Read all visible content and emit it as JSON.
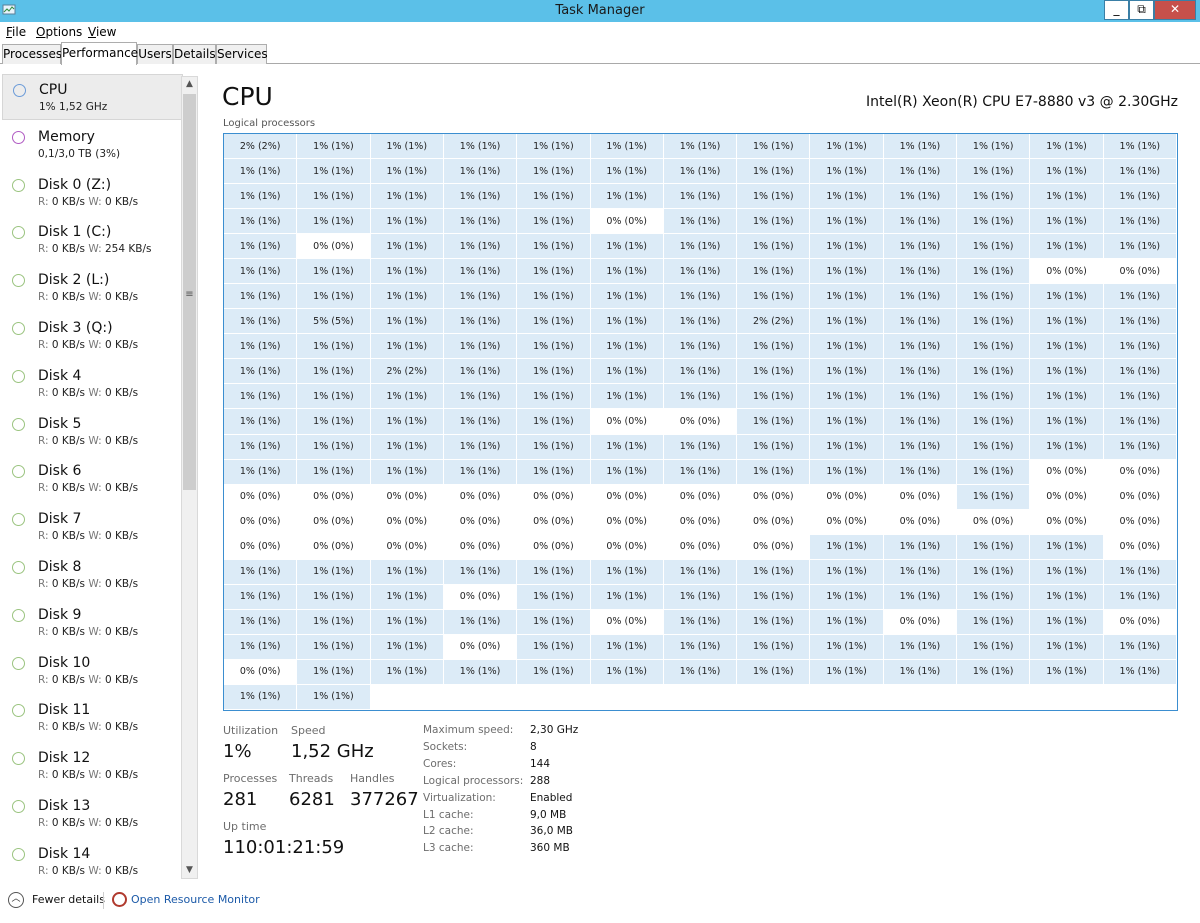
{
  "window": {
    "title": "Task Manager",
    "close_glyph": "✕",
    "max_glyph": "⧉",
    "min_glyph": "_"
  },
  "menu": {
    "file_ul": "F",
    "file_rest": "ile",
    "options_ul": "O",
    "options_rest": "ptions",
    "view_ul": "V",
    "view_rest": "iew"
  },
  "tabs": [
    "Processes",
    "Performance",
    "Users",
    "Details",
    "Services"
  ],
  "sidebar": {
    "items": [
      {
        "name": "CPU",
        "sub": "1% 1,52 GHz",
        "color": "#6b9bd8"
      },
      {
        "name": "Memory",
        "sub": "0,1/3,0 TB (3%)",
        "color": "#b05bc3"
      },
      {
        "name": "Disk 0 (Z:)",
        "read": "0 KB/s",
        "write": "0 KB/s",
        "color": "#9bc480"
      },
      {
        "name": "Disk 1 (C:)",
        "read": "0 KB/s",
        "write": "254 KB/s",
        "color": "#9bc480"
      },
      {
        "name": "Disk 2 (L:)",
        "read": "0 KB/s",
        "write": "0 KB/s",
        "color": "#9bc480"
      },
      {
        "name": "Disk 3 (Q:)",
        "read": "0 KB/s",
        "write": "0 KB/s",
        "color": "#9bc480"
      },
      {
        "name": "Disk 4",
        "read": "0 KB/s",
        "write": "0 KB/s",
        "color": "#9bc480"
      },
      {
        "name": "Disk 5",
        "read": "0 KB/s",
        "write": "0 KB/s",
        "color": "#9bc480"
      },
      {
        "name": "Disk 6",
        "read": "0 KB/s",
        "write": "0 KB/s",
        "color": "#9bc480"
      },
      {
        "name": "Disk 7",
        "read": "0 KB/s",
        "write": "0 KB/s",
        "color": "#9bc480"
      },
      {
        "name": "Disk 8",
        "read": "0 KB/s",
        "write": "0 KB/s",
        "color": "#9bc480"
      },
      {
        "name": "Disk 9",
        "read": "0 KB/s",
        "write": "0 KB/s",
        "color": "#9bc480"
      },
      {
        "name": "Disk 10",
        "read": "0 KB/s",
        "write": "0 KB/s",
        "color": "#9bc480"
      },
      {
        "name": "Disk 11",
        "read": "0 KB/s",
        "write": "0 KB/s",
        "color": "#9bc480"
      },
      {
        "name": "Disk 12",
        "read": "0 KB/s",
        "write": "0 KB/s",
        "color": "#9bc480"
      },
      {
        "name": "Disk 13",
        "read": "0 KB/s",
        "write": "0 KB/s",
        "color": "#9bc480"
      },
      {
        "name": "Disk 14",
        "read": "0 KB/s",
        "write": "0 KB/s",
        "color": "#9bc480"
      }
    ],
    "read_label": "R:",
    "write_label": "W:"
  },
  "cpu": {
    "title": "CPU",
    "model": "Intel(R) Xeon(R) CPU E7-8880 v3 @ 2.30GHz",
    "grid_caption": "Logical processors",
    "cell_color_active": "#dcebf7",
    "cell_color_idle": "#ffffff",
    "processors": [
      "2% (2%)",
      "1% (1%)",
      "1% (1%)",
      "1% (1%)",
      "1% (1%)",
      "1% (1%)",
      "1% (1%)",
      "1% (1%)",
      "1% (1%)",
      "1% (1%)",
      "1% (1%)",
      "1% (1%)",
      "1% (1%)",
      "1% (1%)",
      "1% (1%)",
      "1% (1%)",
      "1% (1%)",
      "1% (1%)",
      "1% (1%)",
      "1% (1%)",
      "1% (1%)",
      "1% (1%)",
      "1% (1%)",
      "1% (1%)",
      "1% (1%)",
      "1% (1%)",
      "1% (1%)",
      "1% (1%)",
      "1% (1%)",
      "1% (1%)",
      "1% (1%)",
      "1% (1%)",
      "1% (1%)",
      "1% (1%)",
      "1% (1%)",
      "1% (1%)",
      "1% (1%)",
      "1% (1%)",
      "1% (1%)",
      "1% (1%)",
      "1% (1%)",
      "1% (1%)",
      "1% (1%)",
      "1% (1%)",
      "0% (0%)",
      "1% (1%)",
      "1% (1%)",
      "1% (1%)",
      "1% (1%)",
      "1% (1%)",
      "1% (1%)",
      "1% (1%)",
      "1% (1%)",
      "0% (0%)",
      "1% (1%)",
      "1% (1%)",
      "1% (1%)",
      "1% (1%)",
      "1% (1%)",
      "1% (1%)",
      "1% (1%)",
      "1% (1%)",
      "1% (1%)",
      "1% (1%)",
      "1% (1%)",
      "1% (1%)",
      "1% (1%)",
      "1% (1%)",
      "1% (1%)",
      "1% (1%)",
      "1% (1%)",
      "1% (1%)",
      "1% (1%)",
      "1% (1%)",
      "1% (1%)",
      "1% (1%)",
      "0% (0%)",
      "0% (0%)",
      "1% (1%)",
      "1% (1%)",
      "1% (1%)",
      "1% (1%)",
      "1% (1%)",
      "1% (1%)",
      "1% (1%)",
      "1% (1%)",
      "1% (1%)",
      "1% (1%)",
      "1% (1%)",
      "1% (1%)",
      "1% (1%)",
      "1% (1%)",
      "5% (5%)",
      "1% (1%)",
      "1% (1%)",
      "1% (1%)",
      "1% (1%)",
      "1% (1%)",
      "2% (2%)",
      "1% (1%)",
      "1% (1%)",
      "1% (1%)",
      "1% (1%)",
      "1% (1%)",
      "1% (1%)",
      "1% (1%)",
      "1% (1%)",
      "1% (1%)",
      "1% (1%)",
      "1% (1%)",
      "1% (1%)",
      "1% (1%)",
      "1% (1%)",
      "1% (1%)",
      "1% (1%)",
      "1% (1%)",
      "1% (1%)",
      "1% (1%)",
      "1% (1%)",
      "2% (2%)",
      "1% (1%)",
      "1% (1%)",
      "1% (1%)",
      "1% (1%)",
      "1% (1%)",
      "1% (1%)",
      "1% (1%)",
      "1% (1%)",
      "1% (1%)",
      "1% (1%)",
      "1% (1%)",
      "1% (1%)",
      "1% (1%)",
      "1% (1%)",
      "1% (1%)",
      "1% (1%)",
      "1% (1%)",
      "1% (1%)",
      "1% (1%)",
      "1% (1%)",
      "1% (1%)",
      "1% (1%)",
      "1% (1%)",
      "1% (1%)",
      "1% (1%)",
      "1% (1%)",
      "1% (1%)",
      "1% (1%)",
      "0% (0%)",
      "0% (0%)",
      "1% (1%)",
      "1% (1%)",
      "1% (1%)",
      "1% (1%)",
      "1% (1%)",
      "1% (1%)",
      "1% (1%)",
      "1% (1%)",
      "1% (1%)",
      "1% (1%)",
      "1% (1%)",
      "1% (1%)",
      "1% (1%)",
      "1% (1%)",
      "1% (1%)",
      "1% (1%)",
      "1% (1%)",
      "1% (1%)",
      "1% (1%)",
      "1% (1%)",
      "1% (1%)",
      "1% (1%)",
      "1% (1%)",
      "1% (1%)",
      "1% (1%)",
      "1% (1%)",
      "1% (1%)",
      "1% (1%)",
      "1% (1%)",
      "1% (1%)",
      "0% (0%)",
      "0% (0%)",
      "0% (0%)",
      "0% (0%)",
      "0% (0%)",
      "0% (0%)",
      "0% (0%)",
      "0% (0%)",
      "0% (0%)",
      "0% (0%)",
      "0% (0%)",
      "0% (0%)",
      "1% (1%)",
      "0% (0%)",
      "0% (0%)",
      "0% (0%)",
      "0% (0%)",
      "0% (0%)",
      "0% (0%)",
      "0% (0%)",
      "0% (0%)",
      "0% (0%)",
      "0% (0%)",
      "0% (0%)",
      "0% (0%)",
      "0% (0%)",
      "0% (0%)",
      "0% (0%)",
      "0% (0%)",
      "0% (0%)",
      "0% (0%)",
      "0% (0%)",
      "0% (0%)",
      "0% (0%)",
      "0% (0%)",
      "0% (0%)",
      "1% (1%)",
      "1% (1%)",
      "1% (1%)",
      "1% (1%)",
      "0% (0%)",
      "1% (1%)",
      "1% (1%)",
      "1% (1%)",
      "1% (1%)",
      "1% (1%)",
      "1% (1%)",
      "1% (1%)",
      "1% (1%)",
      "1% (1%)",
      "1% (1%)",
      "1% (1%)",
      "1% (1%)",
      "1% (1%)",
      "1% (1%)",
      "1% (1%)",
      "1% (1%)",
      "0% (0%)",
      "1% (1%)",
      "1% (1%)",
      "1% (1%)",
      "1% (1%)",
      "1% (1%)",
      "1% (1%)",
      "1% (1%)",
      "1% (1%)",
      "1% (1%)",
      "1% (1%)",
      "1% (1%)",
      "1% (1%)",
      "1% (1%)",
      "1% (1%)",
      "0% (0%)",
      "1% (1%)",
      "1% (1%)",
      "1% (1%)",
      "0% (0%)",
      "1% (1%)",
      "1% (1%)",
      "0% (0%)",
      "1% (1%)",
      "1% (1%)",
      "1% (1%)",
      "0% (0%)",
      "1% (1%)",
      "1% (1%)",
      "1% (1%)",
      "1% (1%)",
      "1% (1%)",
      "1% (1%)",
      "1% (1%)",
      "1% (1%)",
      "1% (1%)",
      "0% (0%)",
      "1% (1%)",
      "1% (1%)",
      "1% (1%)",
      "1% (1%)",
      "1% (1%)",
      "1% (1%)",
      "1% (1%)",
      "1% (1%)",
      "1% (1%)",
      "1% (1%)",
      "1% (1%)",
      "1% (1%)",
      "1% (1%)",
      "1% (1%)"
    ]
  },
  "stats": {
    "utilization_label": "Utilization",
    "utilization": "1%",
    "speed_label": "Speed",
    "speed": "1,52 GHz",
    "processes_label": "Processes",
    "processes": "281",
    "threads_label": "Threads",
    "threads": "6281",
    "handles_label": "Handles",
    "handles": "377267",
    "uptime_label": "Up time",
    "uptime": "110:01:21:59"
  },
  "specs": [
    {
      "label": "Maximum speed:",
      "value": "2,30 GHz"
    },
    {
      "label": "Sockets:",
      "value": "8"
    },
    {
      "label": "Cores:",
      "value": "144"
    },
    {
      "label": "Logical processors:",
      "value": "288"
    },
    {
      "label": "Virtualization:",
      "value": "Enabled"
    },
    {
      "label": "L1 cache:",
      "value": "9,0 MB"
    },
    {
      "label": "L2 cache:",
      "value": "36,0 MB"
    },
    {
      "label": "L3 cache:",
      "value": "360 MB"
    }
  ],
  "footer": {
    "fewer_details": "Fewer details",
    "open_resource_monitor": "Open Resource Monitor"
  }
}
